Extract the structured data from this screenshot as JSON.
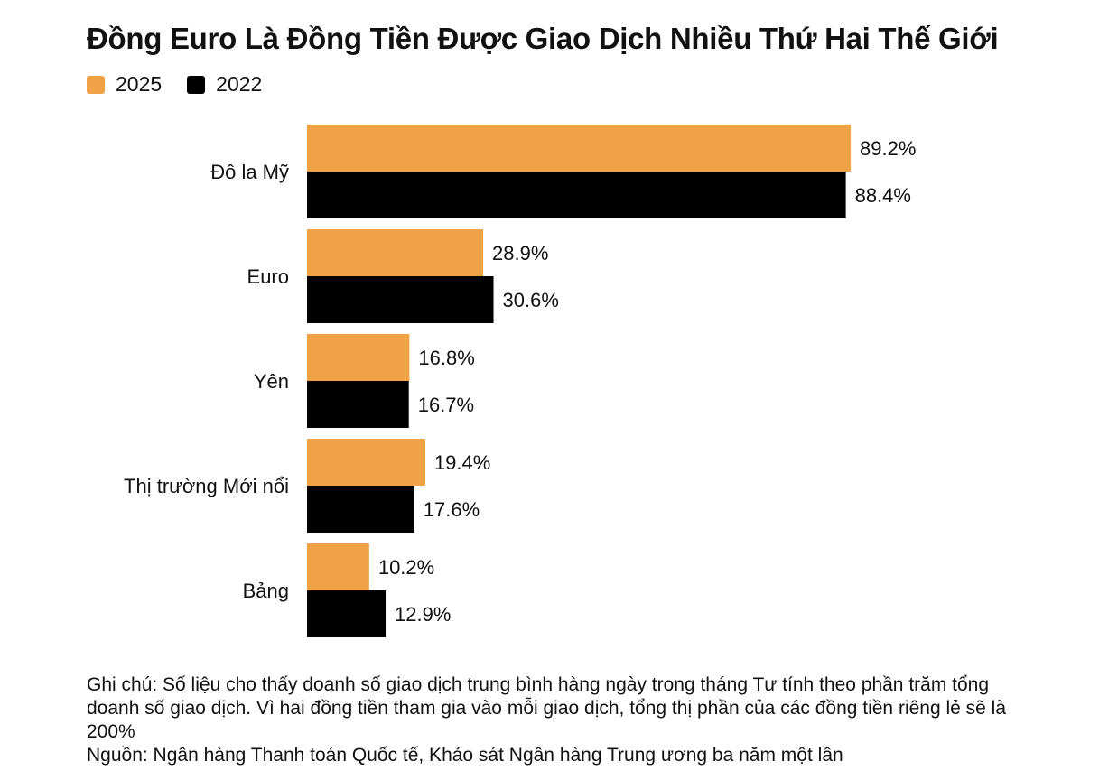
{
  "title": "Đồng Euro Là Đồng Tiền Được Giao Dịch Nhiều Thứ Hai Thế Giới",
  "legend": [
    {
      "label": "2025",
      "color": "#f0a246"
    },
    {
      "label": "2022",
      "color": "#000000"
    }
  ],
  "chart_data": {
    "type": "bar",
    "orientation": "horizontal",
    "categories": [
      "Đô la Mỹ",
      "Euro",
      "Yên",
      "Thị trường Mới nổi",
      "Bảng"
    ],
    "series": [
      {
        "name": "2025",
        "color": "#f0a246",
        "values": [
          89.2,
          28.9,
          16.8,
          19.4,
          10.2
        ],
        "labels": [
          "89.2%",
          "28.9%",
          "16.8%",
          "19.4%",
          "10.2%"
        ]
      },
      {
        "name": "2022",
        "color": "#000000",
        "values": [
          88.4,
          30.6,
          16.7,
          17.6,
          12.9
        ],
        "labels": [
          "88.4%",
          "30.6%",
          "16.7%",
          "17.6%",
          "12.9%"
        ]
      }
    ],
    "xlim": [
      0,
      89.2
    ],
    "grid": false,
    "legend_position": "top-left"
  },
  "notes": {
    "note": "Ghi chú: Số liệu cho thấy doanh số giao dịch trung bình hàng ngày trong tháng Tư tính theo phần trăm tổng doanh số giao dịch. Vì hai đồng tiền tham gia vào mỗi giao dịch, tổng thị phần của các đồng tiền riêng lẻ sẽ là 200%",
    "source": "Nguồn: Ngân hàng Thanh toán Quốc tế, Khảo sát Ngân hàng Trung ương ba năm một lần"
  }
}
